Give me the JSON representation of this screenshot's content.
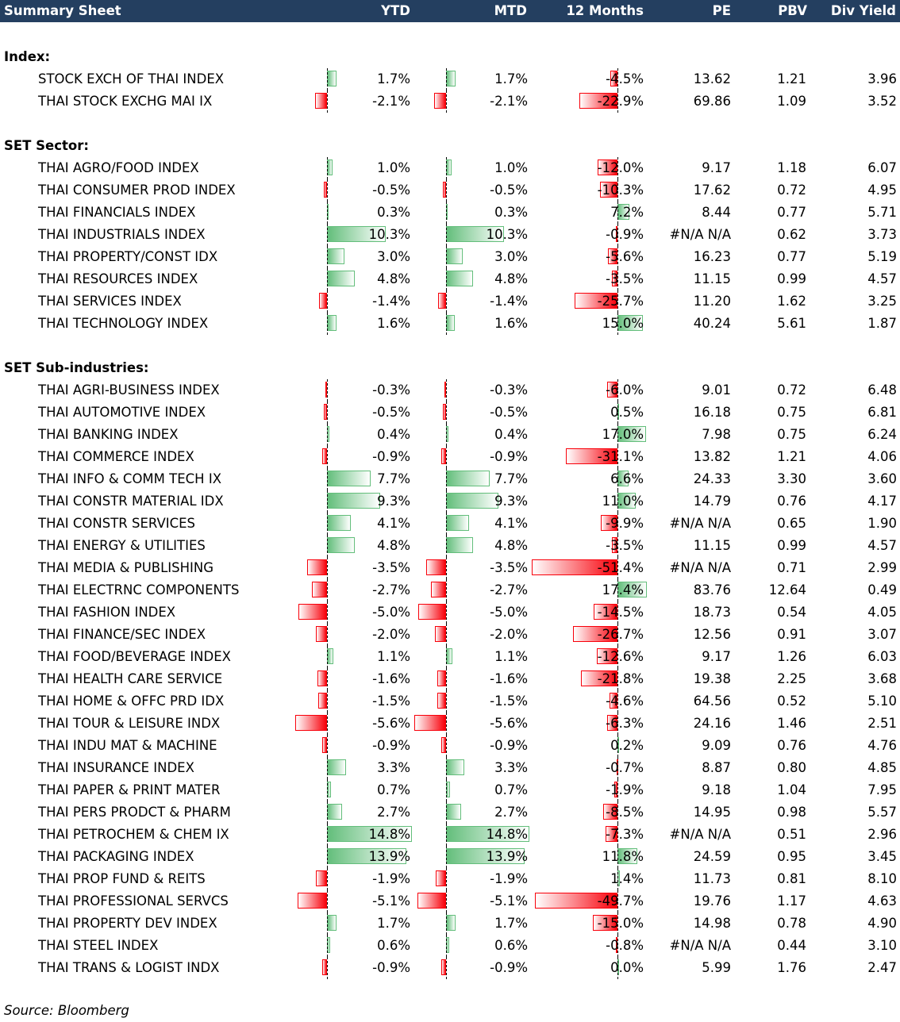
{
  "header": {
    "title": "Summary Sheet",
    "ytd": "YTD",
    "mtd": "MTD",
    "m12": "12 Months",
    "pe": "PE",
    "pbv": "PBV",
    "dy": "Div Yield"
  },
  "colors": {
    "header_bg": "#243F60",
    "positive": "#63BE7B",
    "negative": "#F8000A"
  },
  "sections": [
    {
      "title": "Index:",
      "rows": [
        [
          "STOCK EXCH OF THAI INDEX",
          "1.7%",
          "1.7%",
          "-4.5%",
          "13.62",
          "1.21",
          "3.96"
        ],
        [
          "THAI STOCK EXCHG MAI IX",
          "-2.1%",
          "-2.1%",
          "-22.9%",
          "69.86",
          "1.09",
          "3.52"
        ]
      ]
    },
    {
      "title": "SET Sector:",
      "rows": [
        [
          "THAI AGRO/FOOD INDEX",
          "1.0%",
          "1.0%",
          "-12.0%",
          "9.17",
          "1.18",
          "6.07"
        ],
        [
          "THAI CONSUMER PROD INDEX",
          "-0.5%",
          "-0.5%",
          "-10.3%",
          "17.62",
          "0.72",
          "4.95"
        ],
        [
          "THAI FINANCIALS INDEX",
          "0.3%",
          "0.3%",
          "7.2%",
          "8.44",
          "0.77",
          "5.71"
        ],
        [
          "THAI INDUSTRIALS INDEX",
          "10.3%",
          "10.3%",
          "-0.9%",
          "#N/A N/A",
          "0.62",
          "3.73"
        ],
        [
          "THAI PROPERTY/CONST IDX",
          "3.0%",
          "3.0%",
          "-5.6%",
          "16.23",
          "0.77",
          "5.19"
        ],
        [
          "THAI RESOURCES INDEX",
          "4.8%",
          "4.8%",
          "-3.5%",
          "11.15",
          "0.99",
          "4.57"
        ],
        [
          "THAI SERVICES INDEX",
          "-1.4%",
          "-1.4%",
          "-25.7%",
          "11.20",
          "1.62",
          "3.25"
        ],
        [
          "THAI TECHNOLOGY INDEX",
          "1.6%",
          "1.6%",
          "15.0%",
          "40.24",
          "5.61",
          "1.87"
        ]
      ]
    },
    {
      "title": "SET Sub-industries:",
      "rows": [
        [
          "THAI AGRI-BUSINESS INDEX",
          "-0.3%",
          "-0.3%",
          "-6.0%",
          "9.01",
          "0.72",
          "6.48"
        ],
        [
          "THAI AUTOMOTIVE INDEX",
          "-0.5%",
          "-0.5%",
          "0.5%",
          "16.18",
          "0.75",
          "6.81"
        ],
        [
          "THAI BANKING INDEX",
          "0.4%",
          "0.4%",
          "17.0%",
          "7.98",
          "0.75",
          "6.24"
        ],
        [
          "THAI COMMERCE INDEX",
          "-0.9%",
          "-0.9%",
          "-31.1%",
          "13.82",
          "1.21",
          "4.06"
        ],
        [
          "THAI INFO & COMM TECH IX",
          "7.7%",
          "7.7%",
          "6.6%",
          "24.33",
          "3.30",
          "3.60"
        ],
        [
          "THAI CONSTR MATERIAL IDX",
          "9.3%",
          "9.3%",
          "11.0%",
          "14.79",
          "0.76",
          "4.17"
        ],
        [
          "THAI CONSTR SERVICES",
          "4.1%",
          "4.1%",
          "-9.9%",
          "#N/A N/A",
          "0.65",
          "1.90"
        ],
        [
          "THAI ENERGY & UTILITIES",
          "4.8%",
          "4.8%",
          "-3.5%",
          "11.15",
          "0.99",
          "4.57"
        ],
        [
          "THAI MEDIA & PUBLISHING",
          "-3.5%",
          "-3.5%",
          "-51.4%",
          "#N/A N/A",
          "0.71",
          "2.99"
        ],
        [
          "THAI ELECTRNC COMPONENTS",
          "-2.7%",
          "-2.7%",
          "17.4%",
          "83.76",
          "12.64",
          "0.49"
        ],
        [
          "THAI FASHION INDEX",
          "-5.0%",
          "-5.0%",
          "-14.5%",
          "18.73",
          "0.54",
          "4.05"
        ],
        [
          "THAI FINANCE/SEC INDEX",
          "-2.0%",
          "-2.0%",
          "-26.7%",
          "12.56",
          "0.91",
          "3.07"
        ],
        [
          "THAI FOOD/BEVERAGE INDEX",
          "1.1%",
          "1.1%",
          "-12.6%",
          "9.17",
          "1.26",
          "6.03"
        ],
        [
          "THAI HEALTH CARE SERVICE",
          "-1.6%",
          "-1.6%",
          "-21.8%",
          "19.38",
          "2.25",
          "3.68"
        ],
        [
          "THAI HOME & OFFC PRD IDX",
          "-1.5%",
          "-1.5%",
          "-4.6%",
          "64.56",
          "0.52",
          "5.10"
        ],
        [
          "THAI TOUR & LEISURE INDX",
          "-5.6%",
          "-5.6%",
          "-6.3%",
          "24.16",
          "1.46",
          "2.51"
        ],
        [
          "THAI INDU MAT & MACHINE",
          "-0.9%",
          "-0.9%",
          "0.2%",
          "9.09",
          "0.76",
          "4.76"
        ],
        [
          "THAI INSURANCE INDEX",
          "3.3%",
          "3.3%",
          "-0.7%",
          "8.87",
          "0.80",
          "4.85"
        ],
        [
          "THAI PAPER & PRINT MATER",
          "0.7%",
          "0.7%",
          "-1.9%",
          "9.18",
          "1.04",
          "7.95"
        ],
        [
          "THAI PERS PRODCT & PHARM",
          "2.7%",
          "2.7%",
          "-8.5%",
          "14.95",
          "0.98",
          "5.57"
        ],
        [
          "THAI PETROCHEM & CHEM IX",
          "14.8%",
          "14.8%",
          "-7.3%",
          "#N/A N/A",
          "0.51",
          "2.96"
        ],
        [
          "THAI PACKAGING INDEX",
          "13.9%",
          "13.9%",
          "11.8%",
          "24.59",
          "0.95",
          "3.45"
        ],
        [
          "THAI PROP FUND & REITS",
          "-1.9%",
          "-1.9%",
          "1.4%",
          "11.73",
          "0.81",
          "8.10"
        ],
        [
          "THAI PROFESSIONAL SERVCS",
          "-5.1%",
          "-5.1%",
          "-49.7%",
          "19.76",
          "1.17",
          "4.63"
        ],
        [
          "THAI PROPERTY DEV INDEX",
          "1.7%",
          "1.7%",
          "-15.0%",
          "14.98",
          "0.78",
          "4.90"
        ],
        [
          "THAI STEEL INDEX",
          "0.6%",
          "0.6%",
          "-0.8%",
          "#N/A N/A",
          "0.44",
          "3.10"
        ],
        [
          "THAI TRANS & LOGIST INDX",
          "-0.9%",
          "-0.9%",
          "0.0%",
          "5.99",
          "1.76",
          "2.47"
        ]
      ]
    }
  ],
  "source": "Source: Bloomberg"
}
